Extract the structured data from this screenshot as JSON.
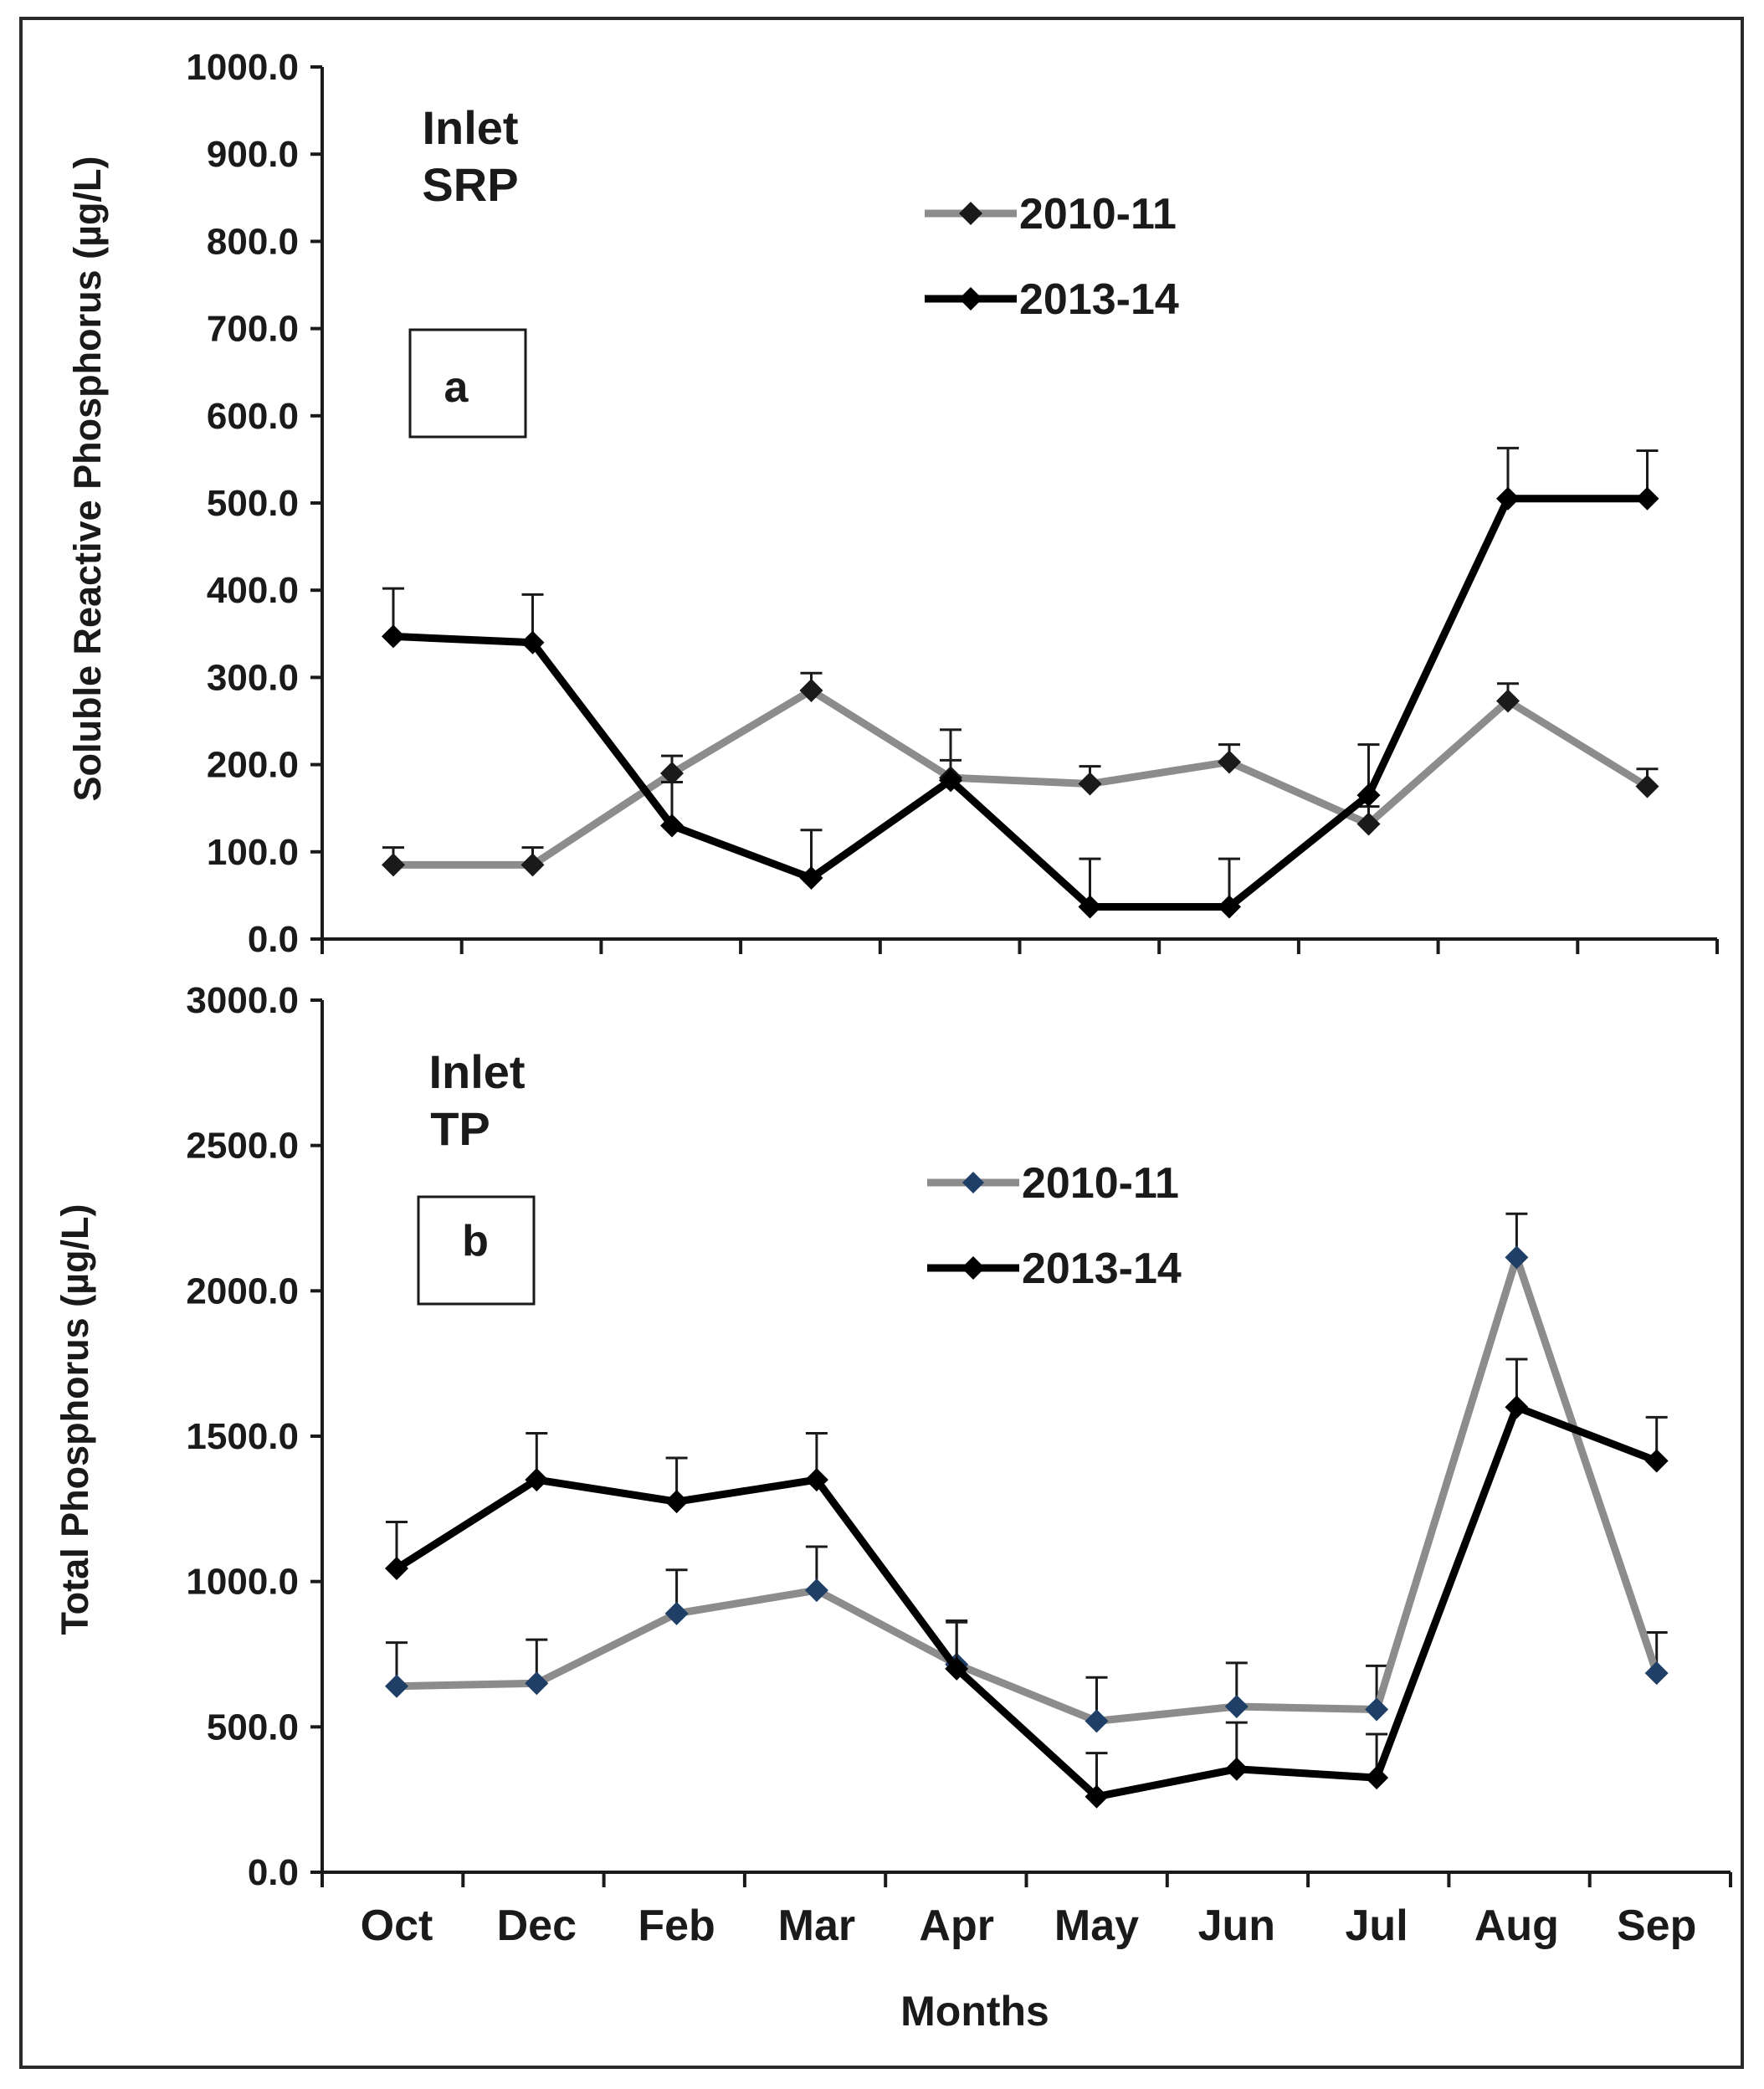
{
  "chart_data": [
    {
      "type": "line",
      "panel_label": "a",
      "title_line1": "Inlet",
      "title_line2": "SRP",
      "ylabel": "Soluble Reactive Phosphorus (µg/L)",
      "xlabel": "",
      "ylim": [
        0,
        1000
      ],
      "yticks": [
        "0.0",
        "100.0",
        "200.0",
        "300.0",
        "400.0",
        "500.0",
        "600.0",
        "700.0",
        "800.0",
        "900.0",
        "1000.0"
      ],
      "categories": [
        "Oct",
        "Dec",
        "Feb",
        "Mar",
        "Apr",
        "May",
        "Jun",
        "Jul",
        "Aug",
        "Sep"
      ],
      "legend_position": "top-center",
      "series": [
        {
          "name": "2010-11",
          "color": "#8c8c8c",
          "marker_color": "#1a1a1a",
          "values": [
            85,
            85,
            190,
            285,
            185,
            178,
            203,
            132,
            273,
            175
          ],
          "errors": [
            20,
            20,
            20,
            20,
            20,
            20,
            20,
            20,
            20,
            20
          ]
        },
        {
          "name": "2013-14",
          "color": "#000000",
          "marker_color": "#000000",
          "values": [
            347,
            340,
            130,
            70,
            182,
            37,
            37,
            165,
            505,
            505
          ],
          "errors": [
            55,
            55,
            50,
            55,
            58,
            55,
            55,
            58,
            58,
            55
          ]
        }
      ]
    },
    {
      "type": "line",
      "panel_label": "b",
      "title_line1": "Inlet",
      "title_line2": "TP",
      "ylabel": "Total Phosphorus (µg/L)",
      "xlabel": "Months",
      "ylim": [
        0,
        3000
      ],
      "yticks": [
        "0.0",
        "500.0",
        "1000.0",
        "1500.0",
        "2000.0",
        "2500.0",
        "3000.0"
      ],
      "categories": [
        "Oct",
        "Dec",
        "Feb",
        "Mar",
        "Apr",
        "May",
        "Jun",
        "Jul",
        "Aug",
        "Sep"
      ],
      "legend_position": "top-center",
      "series": [
        {
          "name": "2010-11",
          "color": "#8c8c8c",
          "marker_color": "#1f3f66",
          "values": [
            640,
            650,
            890,
            970,
            715,
            520,
            570,
            560,
            2115,
            685
          ],
          "errors": [
            150,
            150,
            150,
            150,
            150,
            150,
            150,
            150,
            150,
            140
          ]
        },
        {
          "name": "2013-14",
          "color": "#000000",
          "marker_color": "#000000",
          "values": [
            1045,
            1350,
            1275,
            1350,
            700,
            260,
            355,
            325,
            1600,
            1415
          ],
          "errors": [
            160,
            160,
            150,
            160,
            160,
            150,
            160,
            150,
            165,
            150
          ]
        }
      ]
    }
  ]
}
